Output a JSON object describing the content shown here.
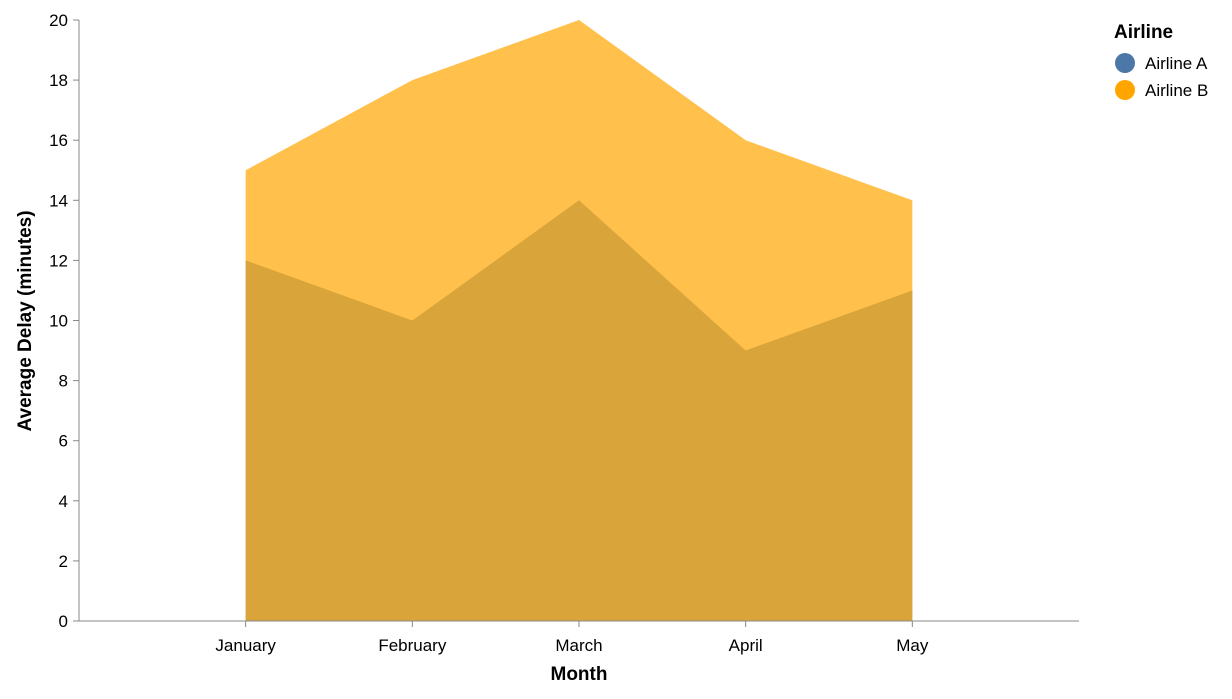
{
  "chart_data": {
    "type": "area",
    "title": "",
    "xlabel": "Month",
    "ylabel": "Average Delay (minutes)",
    "categories": [
      "January",
      "February",
      "March",
      "April",
      "May"
    ],
    "ylim": [
      0,
      20
    ],
    "yticks": [
      0,
      2,
      4,
      6,
      8,
      10,
      12,
      14,
      16,
      18,
      20
    ],
    "grid": false,
    "stacked": false,
    "legend": {
      "title": "Airline",
      "position": "top-right"
    },
    "series": [
      {
        "name": "Airline A",
        "values": [
          12,
          10,
          14,
          9,
          11
        ],
        "color": "#4c78a8"
      },
      {
        "name": "Airline B",
        "values": [
          15,
          18,
          20,
          16,
          14
        ],
        "color": "#ffa500"
      }
    ]
  }
}
